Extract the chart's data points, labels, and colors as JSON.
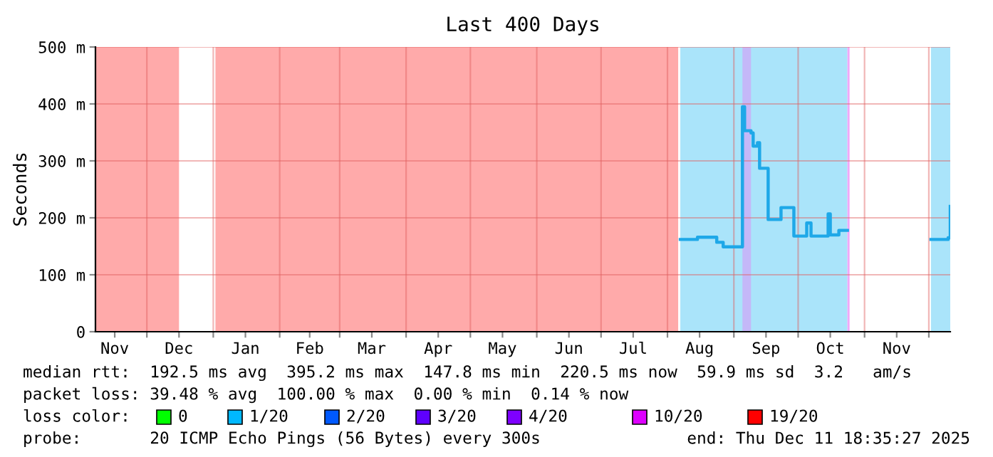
{
  "chart_data": {
    "type": "step",
    "title": "Last 400 Days",
    "ylabel": "Seconds",
    "x": [
      "2025-08-07",
      "2025-08-15",
      "2025-08-24",
      "2025-08-27",
      "2025-09-05",
      "2025-09-06",
      "2025-09-09",
      "2025-09-10",
      "2025-09-12",
      "2025-09-13",
      "2025-09-17",
      "2025-09-23",
      "2025-09-29",
      "2025-10-05",
      "2025-10-07",
      "2025-10-15",
      "2025-10-16",
      "2025-10-20",
      "2025-10-24",
      "2025-12-02",
      "2025-12-10",
      "2025-12-11"
    ],
    "series": [
      {
        "color": "#1ea8e8",
        "values": [
          162,
          166,
          157,
          149,
          395,
          353,
          349,
          326,
          332,
          287,
          197,
          218,
          168,
          191,
          168,
          207,
          170,
          178,
          null,
          162,
          165,
          220
        ]
      }
    ],
    "xlim": [
      "2024-11-07",
      "2025-12-11"
    ],
    "xticks": [
      {
        "value": "2024-11-16",
        "label": "Nov"
      },
      {
        "value": "2024-12-01",
        "label": null
      },
      {
        "value": "2024-12-16",
        "label": "Dec"
      },
      {
        "value": "2025-01-01",
        "label": null
      },
      {
        "value": "2025-01-16",
        "label": "Jan"
      },
      {
        "value": "2025-02-01",
        "label": null
      },
      {
        "value": "2025-02-15",
        "label": "Feb"
      },
      {
        "value": "2025-03-01",
        "label": null
      },
      {
        "value": "2025-03-16",
        "label": "Mar"
      },
      {
        "value": "2025-04-01",
        "label": null
      },
      {
        "value": "2025-04-16",
        "label": "Apr"
      },
      {
        "value": "2025-05-01",
        "label": null
      },
      {
        "value": "2025-05-16",
        "label": "May"
      },
      {
        "value": "2025-06-01",
        "label": null
      },
      {
        "value": "2025-06-16",
        "label": "Jun"
      },
      {
        "value": "2025-07-01",
        "label": null
      },
      {
        "value": "2025-07-16",
        "label": "Jul"
      },
      {
        "value": "2025-08-01",
        "label": null
      },
      {
        "value": "2025-08-16",
        "label": "Aug"
      },
      {
        "value": "2025-09-01",
        "label": null
      },
      {
        "value": "2025-09-16",
        "label": "Sep"
      },
      {
        "value": "2025-10-01",
        "label": null
      },
      {
        "value": "2025-10-16",
        "label": "Oct"
      },
      {
        "value": "2025-11-01",
        "label": null
      },
      {
        "value": "2025-11-16",
        "label": "Nov"
      },
      {
        "value": "2025-12-01",
        "label": null
      }
    ],
    "ylim": [
      0,
      500
    ],
    "yticks": [
      {
        "value": 0,
        "label": "0"
      },
      {
        "value": 100,
        "label": "100 m"
      },
      {
        "value": 200,
        "label": "200 m"
      },
      {
        "value": 300,
        "label": "300 m"
      },
      {
        "value": 400,
        "label": "400 m"
      },
      {
        "value": 500,
        "label": "500 m"
      }
    ],
    "grid": true,
    "bands": [
      {
        "axis": "x",
        "from": "2024-11-07",
        "to": "2024-12-16",
        "color": "#ffaaaa"
      },
      {
        "axis": "x",
        "from": "2025-01-02",
        "to": "2025-08-06",
        "color": "#ffaaaa"
      },
      {
        "axis": "x",
        "from": "2025-08-07",
        "to": "2025-10-24",
        "color": "#aae4fa"
      },
      {
        "axis": "x",
        "from": "2025-09-05",
        "to": "2025-09-09",
        "color": "#c4b8f8"
      },
      {
        "axis": "x",
        "from": "2025-10-24",
        "to": "2025-10-25",
        "color": "#f0a8f8"
      },
      {
        "axis": "x",
        "from": "2025-12-02",
        "to": "2025-12-11",
        "color": "#aae4fa"
      }
    ],
    "annotations": [
      "median rtt:  192.5 ms avg  395.2 ms max  147.8 ms min  220.5 ms now  59.9 ms sd  3.2   am/s",
      "packet loss: 39.48 % avg  100.00 % max  0.00 % min  0.14 % now",
      "loss color:",
      "0",
      "1/20",
      "2/20",
      "3/20",
      "4/20",
      "10/20",
      "19/20",
      "probe:       20 ICMP Echo Pings (56 Bytes) every 300s",
      "end: Thu Dec 11 18:35:27 2025"
    ]
  }
}
